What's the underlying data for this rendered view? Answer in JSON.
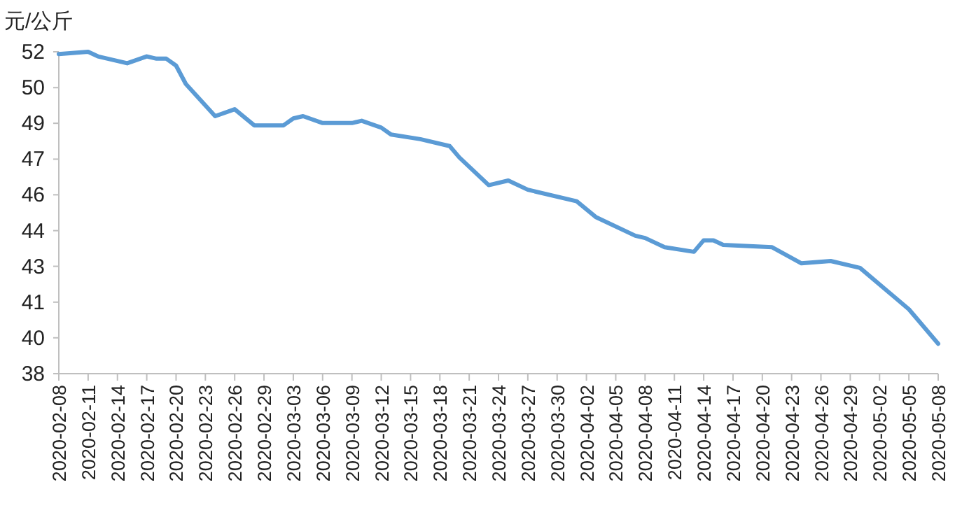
{
  "chart_data": {
    "type": "line",
    "ylabel": "元/公斤",
    "x": [
      "2020-02-08",
      "2020-02-11",
      "2020-02-12",
      "2020-02-13",
      "2020-02-15",
      "2020-02-17",
      "2020-02-18",
      "2020-02-19",
      "2020-02-20",
      "2020-02-21",
      "2020-02-24",
      "2020-02-26",
      "2020-02-28",
      "2020-03-02",
      "2020-03-03",
      "2020-03-04",
      "2020-03-06",
      "2020-03-09",
      "2020-03-10",
      "2020-03-12",
      "2020-03-13",
      "2020-03-16",
      "2020-03-19",
      "2020-03-20",
      "2020-03-23",
      "2020-03-25",
      "2020-03-27",
      "2020-04-01",
      "2020-04-03",
      "2020-04-07",
      "2020-04-08",
      "2020-04-10",
      "2020-04-13",
      "2020-04-14",
      "2020-04-15",
      "2020-04-16",
      "2020-04-21",
      "2020-04-24",
      "2020-04-27",
      "2020-04-30",
      "2020-05-05",
      "2020-05-08"
    ],
    "series": [
      {
        "color": "#5b9bd5",
        "values": [
          51.9,
          52.0,
          51.8,
          51.7,
          51.5,
          51.8,
          51.7,
          51.7,
          51.4,
          50.6,
          49.2,
          49.5,
          48.8,
          48.8,
          49.1,
          49.2,
          48.9,
          48.9,
          49.0,
          48.7,
          48.4,
          48.2,
          47.9,
          47.4,
          46.2,
          46.4,
          46.0,
          45.5,
          44.8,
          44.0,
          43.9,
          43.5,
          43.3,
          43.8,
          43.8,
          43.6,
          43.5,
          42.8,
          42.9,
          42.6,
          40.8,
          39.3
        ]
      }
    ],
    "ylim": [
      38,
      52
    ],
    "yticks": [
      38,
      {
        "value": 39.56,
        "label": "40"
      },
      {
        "value": 41.11,
        "label": "41"
      },
      {
        "value": 42.67,
        "label": "43"
      },
      {
        "value": 44.22,
        "label": "44"
      },
      {
        "value": 45.78,
        "label": "46"
      },
      {
        "value": 47.33,
        "label": "47"
      },
      {
        "value": 48.89,
        "label": "49"
      },
      {
        "value": 50.44,
        "label": "50"
      },
      52
    ],
    "xlim": [
      "2020-02-08",
      "2020-05-08"
    ],
    "xticks": [
      {
        "value": "2020-02-08",
        "label": "2020-02-08"
      },
      {
        "value": "2020-02-11",
        "label": "2020-02-11"
      },
      {
        "value": "2020-02-14",
        "label": "2020-02-14"
      },
      {
        "value": "2020-02-17",
        "label": "2020-02-17"
      },
      {
        "value": "2020-02-20",
        "label": "2020-02-20"
      },
      {
        "value": "2020-02-23",
        "label": "2020-02-23"
      },
      {
        "value": "2020-02-26",
        "label": "2020-02-26"
      },
      {
        "value": "2020-02-29",
        "label": "2020-02-29"
      },
      {
        "value": "2020-03-03",
        "label": "2020-03-03"
      },
      {
        "value": "2020-03-06",
        "label": "2020-03-06"
      },
      {
        "value": "2020-03-09",
        "label": "2020-03-09"
      },
      {
        "value": "2020-03-12",
        "label": "2020-03-12"
      },
      {
        "value": "2020-03-15",
        "label": "2020-03-15"
      },
      {
        "value": "2020-03-18",
        "label": "2020-03-18"
      },
      {
        "value": "2020-03-21",
        "label": "2020-03-21"
      },
      {
        "value": "2020-03-24",
        "label": "2020-03-24"
      },
      {
        "value": "2020-03-27",
        "label": "2020-03-27"
      },
      {
        "value": "2020-03-30",
        "label": "2020-03-30"
      },
      {
        "value": "2020-04-02",
        "label": "2020-04-02"
      },
      {
        "value": "2020-04-05",
        "label": "2020-04-05"
      },
      {
        "value": "2020-04-08",
        "label": "2020-04-08"
      },
      {
        "value": "2020-04-11",
        "label": "2020-04-11"
      },
      {
        "value": "2020-04-14",
        "label": "2020-04-14"
      },
      {
        "value": "2020-04-17",
        "label": "2020-04-17"
      },
      {
        "value": "2020-04-20",
        "label": "2020-04-20"
      },
      {
        "value": "2020-04-23",
        "label": "2020-04-23"
      },
      {
        "value": "2020-04-26",
        "label": "2020-04-26"
      },
      {
        "value": "2020-04-29",
        "label": "2020-04-29"
      },
      {
        "value": "2020-05-02",
        "label": "2020-05-02"
      },
      {
        "value": "2020-05-05",
        "label": "2020-05-05"
      },
      {
        "value": "2020-05-08",
        "label": "2020-05-08"
      }
    ],
    "grid": false,
    "marker": "none",
    "line_style": "solid"
  }
}
